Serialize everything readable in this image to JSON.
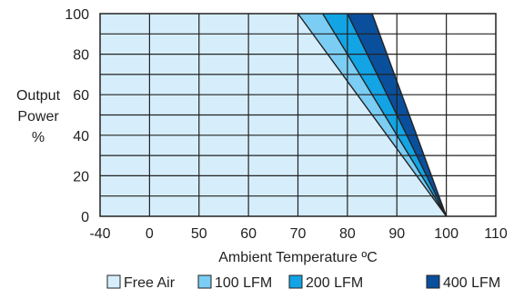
{
  "chart_data": {
    "type": "area",
    "ylabel_lines": [
      "Output",
      "Power",
      "%"
    ],
    "xlabel": "Ambient Temperature ºC",
    "ylim": [
      0,
      100
    ],
    "x_ticks": [
      "-40",
      "0",
      "50",
      "60",
      "70",
      "80",
      "90",
      "100",
      "110"
    ],
    "y_ticks": [
      "0",
      "20",
      "40",
      "60",
      "80",
      "100"
    ],
    "grid": true,
    "legend_position": "bottom",
    "series": [
      {
        "name": "Free Air",
        "color": "#d6eefc",
        "points": [
          [
            -40,
            100
          ],
          [
            70,
            100
          ],
          [
            100,
            0
          ]
        ]
      },
      {
        "name": "100 LFM",
        "color": "#7ccdf4",
        "points": [
          [
            -40,
            100
          ],
          [
            75,
            100
          ],
          [
            100,
            0
          ]
        ]
      },
      {
        "name": "200 LFM",
        "color": "#12a4e4",
        "points": [
          [
            -40,
            100
          ],
          [
            80,
            100
          ],
          [
            100,
            0
          ]
        ]
      },
      {
        "name": "400 LFM",
        "color": "#0a4f9c",
        "points": [
          [
            -40,
            100
          ],
          [
            85,
            100
          ],
          [
            100,
            0
          ]
        ]
      }
    ]
  }
}
